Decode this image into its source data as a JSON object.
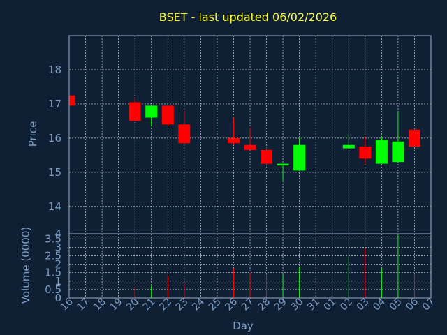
{
  "chart_data": {
    "type": "candlestick",
    "title": "BSET - last updated 06/02/2026",
    "xlabel": "Day",
    "price_panel": {
      "ylabel": "Price",
      "ylim": [
        13.2,
        19.0
      ],
      "yticks": [
        14,
        15,
        16,
        17,
        18
      ],
      "grid": true
    },
    "volume_panel": {
      "ylabel": "Volume (0000)",
      "ylim": [
        0,
        3.8
      ],
      "yticks": [
        "0",
        "0.5",
        "1",
        "1.5",
        "2",
        "2.5",
        "3",
        "3.5",
        "4"
      ],
      "grid": true
    },
    "x_tick_labels": [
      "16",
      "17",
      "18",
      "19",
      "20",
      "21",
      "22",
      "23",
      "24",
      "25",
      "26",
      "27",
      "28",
      "29",
      "30",
      "31",
      "01",
      "02",
      "03",
      "04",
      "05",
      "06",
      "07"
    ],
    "candles": [
      {
        "i": 0,
        "open": 17.25,
        "high": 17.25,
        "low": 16.95,
        "close": 16.95,
        "volume": 0.0
      },
      {
        "i": 4,
        "open": 17.05,
        "high": 17.2,
        "low": 16.5,
        "close": 16.5,
        "volume": 0.7
      },
      {
        "i": 5,
        "open": 16.6,
        "high": 16.95,
        "low": 16.35,
        "close": 16.95,
        "volume": 0.75
      },
      {
        "i": 6,
        "open": 16.95,
        "high": 16.95,
        "low": 16.35,
        "close": 16.4,
        "volume": 1.3
      },
      {
        "i": 7,
        "open": 16.4,
        "high": 16.8,
        "low": 15.8,
        "close": 15.85,
        "volume": 0.9
      },
      {
        "i": 10,
        "open": 16.0,
        "high": 16.6,
        "low": 15.8,
        "close": 15.85,
        "volume": 1.75
      },
      {
        "i": 11,
        "open": 15.8,
        "high": 16.3,
        "low": 15.65,
        "close": 15.65,
        "volume": 1.5
      },
      {
        "i": 12,
        "open": 15.65,
        "high": 15.75,
        "low": 15.2,
        "close": 15.25,
        "volume": 1.4
      },
      {
        "i": 13,
        "open": 15.2,
        "high": 15.25,
        "low": 14.75,
        "close": 15.25,
        "volume": 1.4
      },
      {
        "i": 14,
        "open": 15.05,
        "high": 16.0,
        "low": 15.05,
        "close": 15.8,
        "volume": 1.85
      },
      {
        "i": 17,
        "open": 15.7,
        "high": 16.1,
        "low": 15.7,
        "close": 15.8,
        "volume": 2.5
      },
      {
        "i": 18,
        "open": 15.75,
        "high": 16.05,
        "low": 15.25,
        "close": 15.4,
        "volume": 2.95
      },
      {
        "i": 19,
        "open": 15.25,
        "high": 16.05,
        "low": 15.25,
        "close": 15.95,
        "volume": 1.75
      },
      {
        "i": 20,
        "open": 15.3,
        "high": 16.8,
        "low": 15.3,
        "close": 15.9,
        "volume": 3.75
      },
      {
        "i": 21,
        "open": 16.25,
        "high": 16.25,
        "low": 15.75,
        "close": 15.75,
        "volume": 1.45
      }
    ],
    "colors": {
      "background": "#0f1f34",
      "up": "#00ff00",
      "down": "#ff0000",
      "grid": "#ffffff",
      "title": "#ffff33",
      "axis_text": "#7d9fc6",
      "frame": "#9fb0c8"
    }
  }
}
